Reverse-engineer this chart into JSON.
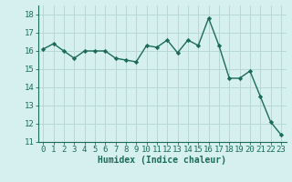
{
  "x": [
    0,
    1,
    2,
    3,
    4,
    5,
    6,
    7,
    8,
    9,
    10,
    11,
    12,
    13,
    14,
    15,
    16,
    17,
    18,
    19,
    20,
    21,
    22,
    23
  ],
  "y": [
    16.1,
    16.4,
    16.0,
    15.6,
    16.0,
    16.0,
    16.0,
    15.6,
    15.5,
    15.4,
    16.3,
    16.2,
    16.6,
    15.9,
    16.6,
    16.3,
    17.8,
    16.3,
    14.5,
    14.5,
    14.9,
    13.5,
    12.1,
    11.4
  ],
  "line_color": "#1a6b5a",
  "marker": "D",
  "markersize": 2.2,
  "linewidth": 1.0,
  "xlabel": "Humidex (Indice chaleur)",
  "ylim": [
    11,
    18.5
  ],
  "xlim": [
    -0.5,
    23.5
  ],
  "yticks": [
    11,
    12,
    13,
    14,
    15,
    16,
    17,
    18
  ],
  "xticks": [
    0,
    1,
    2,
    3,
    4,
    5,
    6,
    7,
    8,
    9,
    10,
    11,
    12,
    13,
    14,
    15,
    16,
    17,
    18,
    19,
    20,
    21,
    22,
    23
  ],
  "bg_color": "#d6f0f0",
  "grid_color": "#b8d8d8",
  "xlabel_fontsize": 7,
  "tick_fontsize": 6.5,
  "tick_color": "#1a6b5a"
}
